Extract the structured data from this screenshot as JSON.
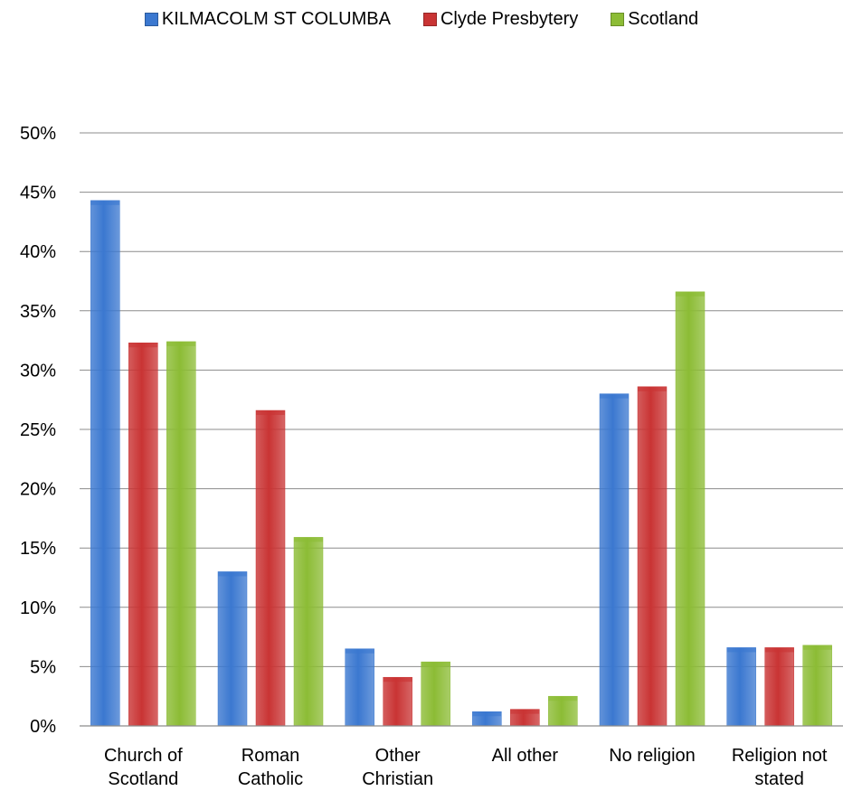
{
  "chart_data": {
    "type": "bar",
    "categories": [
      [
        "Church of",
        "Scotland"
      ],
      [
        "Roman",
        "Catholic"
      ],
      [
        "Other",
        "Christian"
      ],
      [
        "All other"
      ],
      [
        "No religion"
      ],
      [
        "Religion not",
        "stated"
      ]
    ],
    "series": [
      {
        "name": "KILMACOLM ST COLUMBA",
        "color": "#3b78d0",
        "values": [
          44.3,
          13.0,
          6.5,
          1.2,
          28.0,
          6.6
        ]
      },
      {
        "name": "Clyde Presbytery",
        "color": "#c93434",
        "values": [
          32.3,
          26.6,
          4.1,
          1.4,
          28.6,
          6.6
        ]
      },
      {
        "name": "Scotland",
        "color": "#8cbc35",
        "values": [
          32.4,
          15.9,
          5.4,
          2.5,
          36.6,
          6.8
        ]
      }
    ],
    "yticks": [
      "0%",
      "5%",
      "10%",
      "15%",
      "20%",
      "25%",
      "30%",
      "35%",
      "40%",
      "45%",
      "50%"
    ],
    "ylim": [
      0,
      50
    ],
    "grid": true,
    "legend_position": "top"
  }
}
